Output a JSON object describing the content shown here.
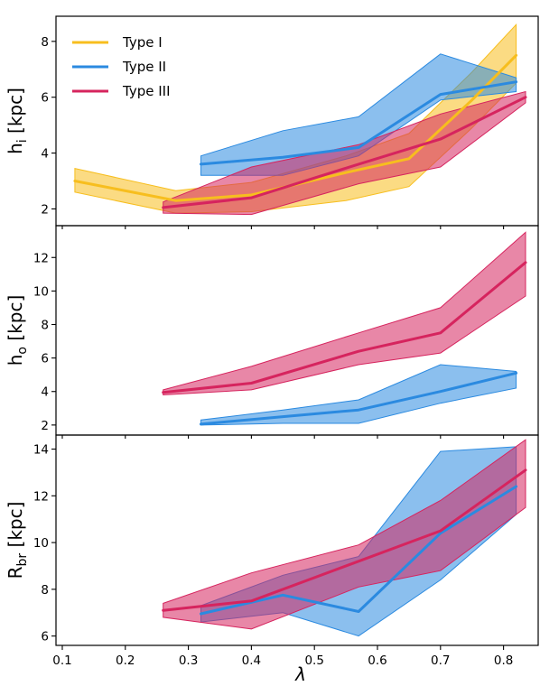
{
  "chart_data": {
    "type": "line",
    "xlabel": "λ",
    "xlim": [
      0.09,
      0.855
    ],
    "x_ticks": [
      0.1,
      0.2,
      0.3,
      0.4,
      0.5,
      0.6,
      0.7,
      0.8
    ],
    "legend": {
      "placement": "top-left",
      "entries": [
        "Type I",
        "Type II",
        "Type III"
      ]
    },
    "colors": {
      "Type I": "#f7be1e",
      "Type II": "#2b8ae0",
      "Type III": "#d6245e"
    },
    "panels": [
      {
        "ylabel_main": "h",
        "ylabel_sub": "i",
        "ylabel_unit": " [kpc]",
        "ylim": [
          1.4,
          8.9
        ],
        "y_ticks": [
          2,
          4,
          6,
          8
        ],
        "series": [
          {
            "name": "Type I",
            "x": [
              0.12,
              0.28,
              0.4,
              0.55,
              0.65,
              0.75,
              0.82
            ],
            "y": [
              3.0,
              2.3,
              2.5,
              3.3,
              3.8,
              5.9,
              7.5
            ],
            "lower": [
              2.6,
              1.85,
              1.9,
              2.3,
              2.8,
              4.9,
              6.5
            ],
            "upper": [
              3.45,
              2.65,
              2.95,
              3.9,
              4.7,
              6.9,
              8.6
            ]
          },
          {
            "name": "Type II",
            "x": [
              0.32,
              0.45,
              0.57,
              0.7,
              0.82
            ],
            "y": [
              3.6,
              3.85,
              4.2,
              6.1,
              6.55
            ],
            "lower": [
              3.2,
              3.2,
              3.9,
              5.9,
              6.2
            ],
            "upper": [
              3.9,
              4.8,
              5.3,
              7.55,
              6.7
            ]
          },
          {
            "name": "Type III",
            "x": [
              0.26,
              0.4,
              0.57,
              0.7,
              0.835
            ],
            "y": [
              2.05,
              2.4,
              3.6,
              4.5,
              6.0
            ],
            "lower": [
              1.85,
              1.8,
              2.9,
              3.5,
              5.8
            ],
            "upper": [
              2.25,
              3.5,
              4.3,
              5.4,
              6.2
            ]
          }
        ]
      },
      {
        "ylabel_main": "h",
        "ylabel_sub": "o",
        "ylabel_unit": " [kpc]",
        "ylim": [
          1.4,
          13.9
        ],
        "y_ticks": [
          2,
          4,
          6,
          8,
          10,
          12
        ],
        "series": [
          {
            "name": "Type II",
            "x": [
              0.32,
              0.45,
              0.57,
              0.7,
              0.82
            ],
            "y": [
              2.05,
              2.5,
              2.9,
              4.0,
              5.1
            ],
            "lower": [
              2.0,
              2.1,
              2.1,
              3.3,
              4.2
            ],
            "upper": [
              2.3,
              2.9,
              3.5,
              5.6,
              5.2
            ]
          },
          {
            "name": "Type III",
            "x": [
              0.26,
              0.4,
              0.57,
              0.7,
              0.835
            ],
            "y": [
              3.95,
              4.5,
              6.4,
              7.5,
              11.7
            ],
            "lower": [
              3.8,
              4.1,
              5.6,
              6.3,
              9.7
            ],
            "upper": [
              4.1,
              5.5,
              7.5,
              9.0,
              13.5
            ]
          }
        ]
      },
      {
        "ylabel_main": "R",
        "ylabel_sub": "br",
        "ylabel_unit": " [kpc]",
        "ylim": [
          5.6,
          14.6
        ],
        "y_ticks": [
          6,
          8,
          10,
          12,
          14
        ],
        "series": [
          {
            "name": "Type II",
            "x": [
              0.32,
              0.45,
              0.57,
              0.7,
              0.82
            ],
            "y": [
              6.95,
              7.75,
              7.05,
              10.4,
              12.4
            ],
            "lower": [
              6.6,
              7.0,
              6.0,
              8.4,
              11.2
            ],
            "upper": [
              7.3,
              8.6,
              9.4,
              13.9,
              14.1
            ]
          },
          {
            "name": "Type III",
            "x": [
              0.26,
              0.4,
              0.57,
              0.7,
              0.835
            ],
            "y": [
              7.1,
              7.5,
              9.2,
              10.5,
              13.1
            ],
            "lower": [
              6.8,
              6.3,
              8.1,
              8.8,
              11.5
            ],
            "upper": [
              7.4,
              8.7,
              9.9,
              11.8,
              14.4
            ]
          }
        ]
      }
    ]
  }
}
